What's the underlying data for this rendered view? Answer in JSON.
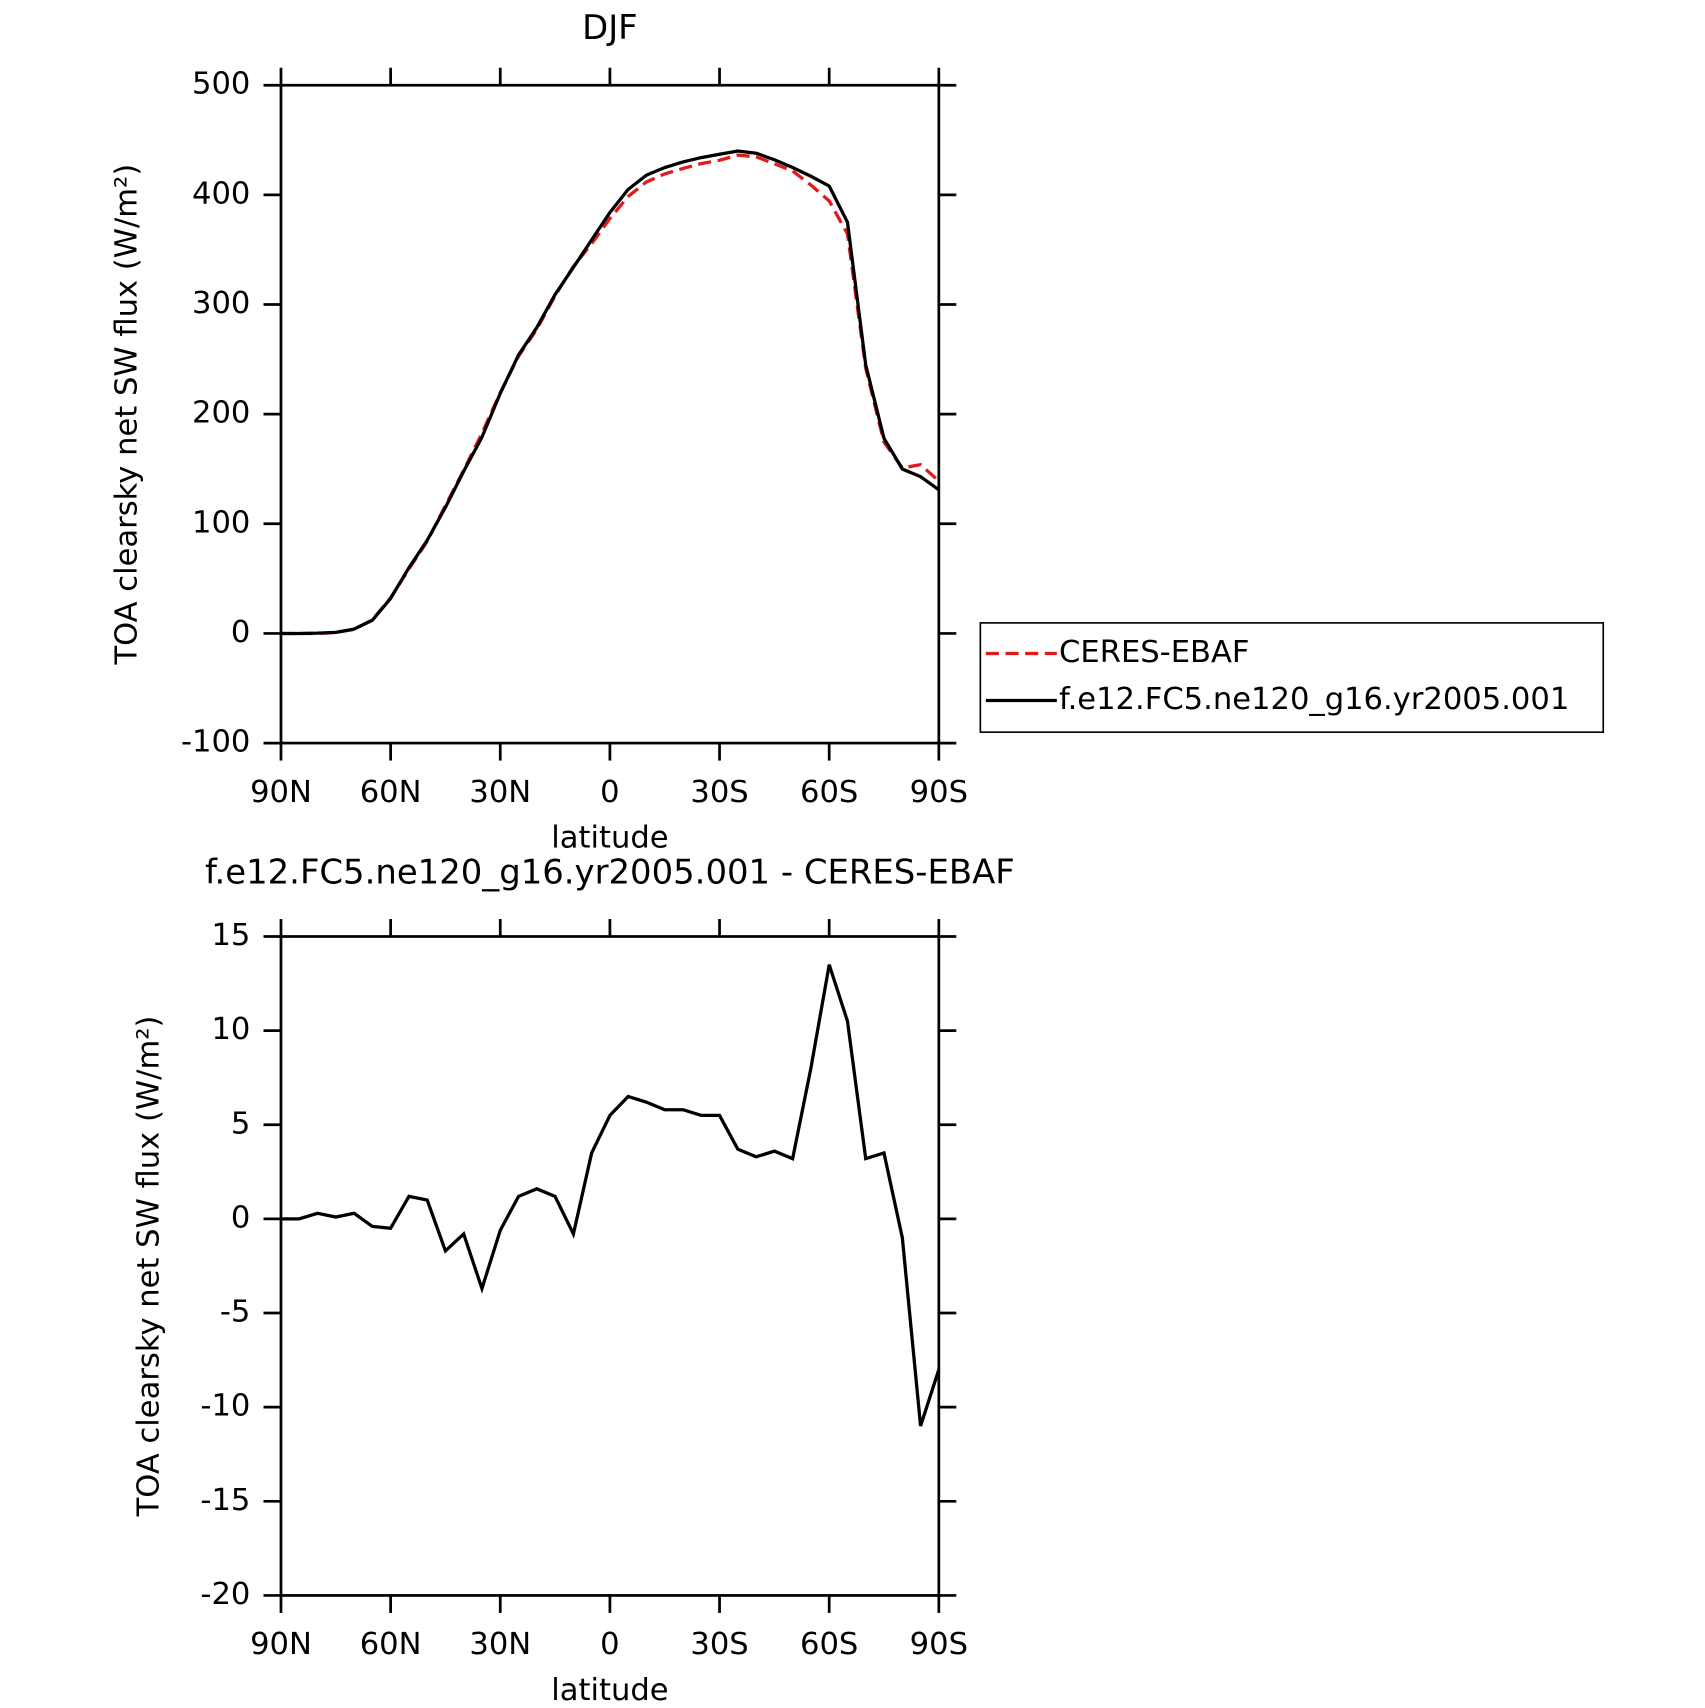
{
  "chart_data": [
    {
      "type": "line",
      "title": "DJF",
      "x_label": "latitude",
      "y_label": "TOA clearsky net SW flux (W/m²)",
      "x": [
        90,
        85,
        80,
        75,
        70,
        65,
        60,
        55,
        50,
        45,
        40,
        35,
        30,
        25,
        20,
        15,
        10,
        5,
        0,
        -5,
        -10,
        -15,
        -20,
        -25,
        -30,
        -35,
        -40,
        -45,
        -50,
        -55,
        -60,
        -65,
        -70,
        -75,
        -80,
        -85,
        -90
      ],
      "series": [
        {
          "name": "CERES-EBAF",
          "color": "#e31a1c",
          "dashed": true,
          "values": [
            0,
            0,
            0,
            0.9,
            3.7,
            12.4,
            32.5,
            58.8,
            84,
            116.7,
            148.8,
            182.7,
            219.6,
            252.8,
            277.4,
            307.8,
            334.8,
            355.5,
            378.5,
            398.5,
            411.8,
            419.2,
            424.2,
            428.5,
            431.5,
            436.3,
            434.7,
            428.4,
            421.8,
            409,
            394.5,
            364.5,
            241.8,
            174.5,
            151,
            154,
            139
          ]
        },
        {
          "name": "f.e12.FC5.ne120_g16.yr2005.001",
          "color": "#000000",
          "dashed": false,
          "values": [
            0,
            0,
            0.3,
            1,
            4,
            12,
            32,
            60,
            85,
            115,
            148,
            179,
            219,
            254,
            279,
            309,
            334,
            359,
            384,
            405,
            418,
            425,
            430,
            434,
            437,
            440,
            438,
            432,
            425,
            417,
            408,
            375,
            245,
            178,
            150,
            143,
            131
          ]
        }
      ],
      "xlim": [
        90,
        -90
      ],
      "xticks": [
        {
          "value": 90,
          "label": "90N"
        },
        {
          "value": 60,
          "label": "60N"
        },
        {
          "value": 30,
          "label": "30N"
        },
        0,
        {
          "value": -30,
          "label": "30S"
        },
        {
          "value": -60,
          "label": "60S"
        },
        {
          "value": -90,
          "label": "90S"
        }
      ],
      "ylim": [
        -100,
        500
      ],
      "yticks": [
        -100,
        0,
        100,
        200,
        300,
        400,
        500
      ],
      "legend": "right"
    },
    {
      "type": "line",
      "title": "f.e12.FC5.ne120_g16.yr2005.001 - CERES-EBAF",
      "x_label": "latitude",
      "y_label": "TOA clearsky net SW flux (W/m²)",
      "x": [
        90,
        85,
        80,
        75,
        70,
        65,
        60,
        55,
        50,
        45,
        40,
        35,
        30,
        25,
        20,
        15,
        10,
        5,
        0,
        -5,
        -10,
        -15,
        -20,
        -25,
        -30,
        -35,
        -40,
        -45,
        -50,
        -55,
        -60,
        -65,
        -70,
        -75,
        -80,
        -85,
        -90
      ],
      "color": "#000000",
      "values": [
        0,
        0,
        0.3,
        0.1,
        0.3,
        -0.4,
        -0.5,
        1.2,
        1.0,
        -1.7,
        -0.8,
        -3.7,
        -0.6,
        1.2,
        1.6,
        1.2,
        -0.8,
        3.5,
        5.5,
        6.5,
        6.2,
        5.8,
        5.8,
        5.5,
        5.5,
        3.7,
        3.3,
        3.6,
        3.2,
        8,
        13.5,
        10.5,
        3.2,
        3.5,
        -1,
        -11,
        -8
      ],
      "xlim": [
        90,
        -90
      ],
      "xticks": [
        {
          "value": 90,
          "label": "90N"
        },
        {
          "value": 60,
          "label": "60N"
        },
        {
          "value": 30,
          "label": "30N"
        },
        0,
        {
          "value": -30,
          "label": "30S"
        },
        {
          "value": -60,
          "label": "60S"
        },
        {
          "value": -90,
          "label": "90S"
        }
      ],
      "ylim": [
        -20,
        15
      ],
      "yticks": [
        -20,
        -15,
        -10,
        -5,
        0,
        5,
        10,
        15
      ]
    }
  ]
}
